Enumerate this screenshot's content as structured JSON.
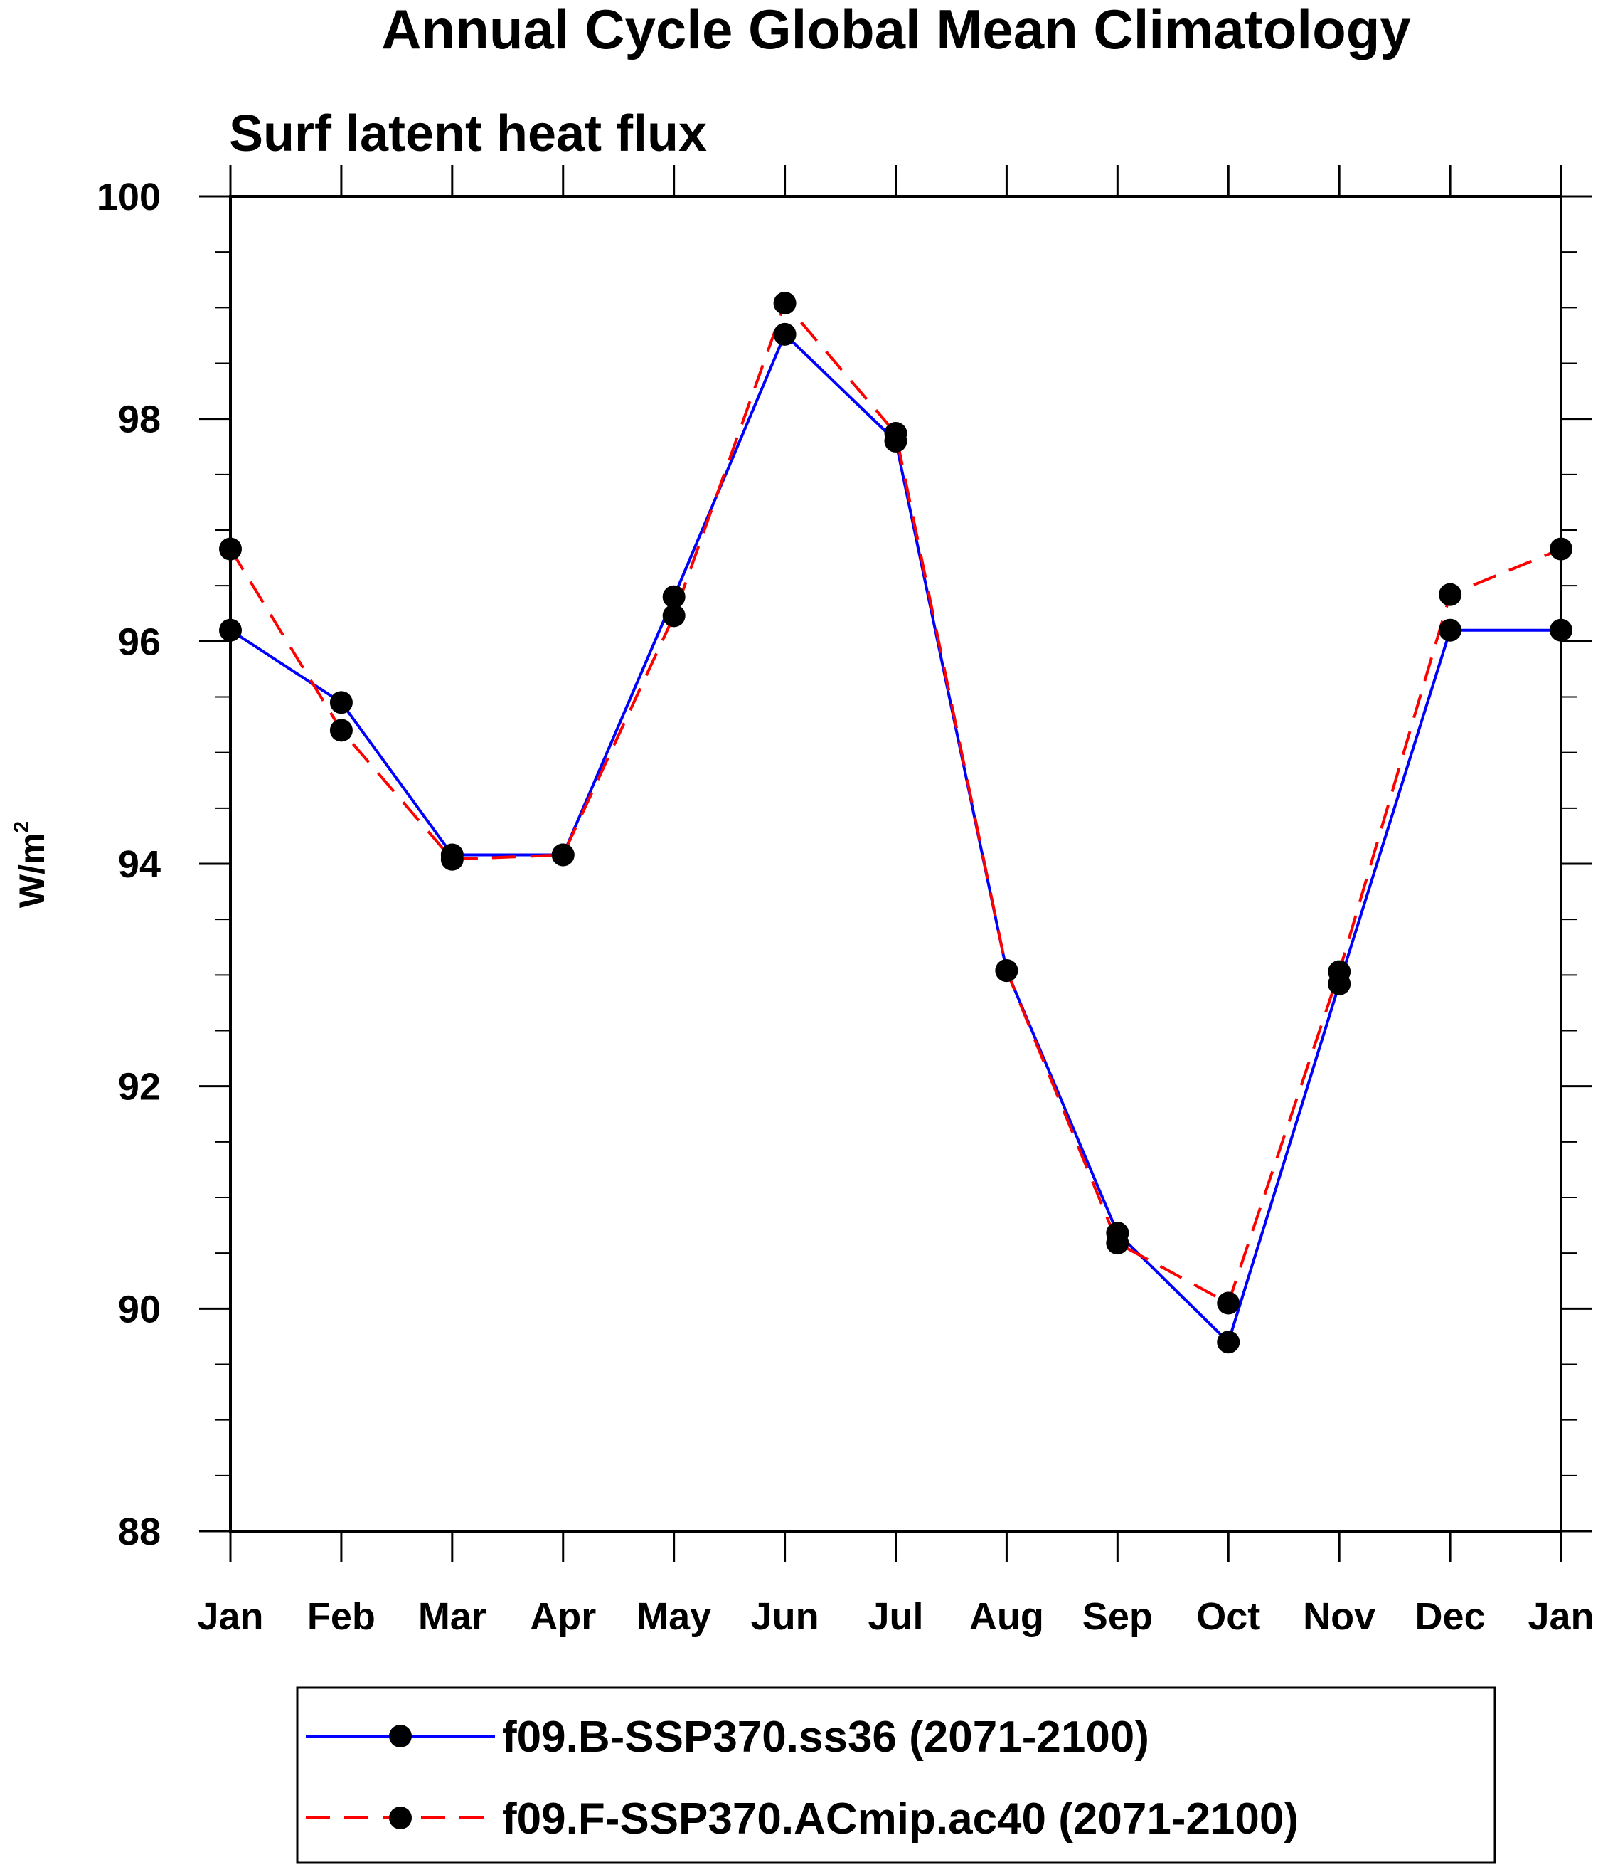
{
  "chart_data": {
    "type": "line",
    "title": "Annual Cycle Global Mean Climatology",
    "subtitle": "Surf latent heat flux",
    "ylabel": "W/m",
    "ylabel_superscript": "2",
    "xlabel": "",
    "categories": [
      "Jan",
      "Feb",
      "Mar",
      "Apr",
      "May",
      "Jun",
      "Jul",
      "Aug",
      "Sep",
      "Oct",
      "Nov",
      "Dec",
      "Jan"
    ],
    "ylim": [
      88,
      100
    ],
    "yticks": [
      "88",
      "90",
      "92",
      "94",
      "96",
      "98",
      "100"
    ],
    "grid": false,
    "legend_position": "bottom",
    "series": [
      {
        "name": "f09.B-SSP370.ss36 (2071-2100)",
        "color": "#0000ff",
        "line_style": "solid",
        "marker": "filled-circle",
        "values": [
          96.1,
          95.45,
          94.08,
          94.08,
          96.4,
          98.76,
          97.8,
          93.04,
          90.68,
          89.7,
          92.92,
          96.1,
          96.1
        ]
      },
      {
        "name": "f09.F-SSP370.ACmip.ac40 (2071-2100)",
        "color": "#ff0000",
        "line_style": "dashed",
        "marker": "filled-circle",
        "values": [
          96.83,
          95.2,
          94.04,
          94.08,
          96.23,
          99.04,
          97.87,
          93.04,
          90.59,
          90.05,
          93.03,
          96.42,
          96.83
        ]
      }
    ]
  }
}
